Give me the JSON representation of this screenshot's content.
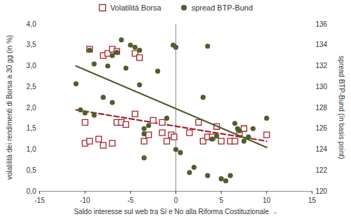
{
  "chart_data": {
    "type": "scatter",
    "xlabel": "Saldo interesse sul web tra Sì e No alla Riforma Costituzionale",
    "ylabel": "volatilità dei rendimenti di Borsa a 30 gg (in %)",
    "y2label": "spread BTP-Bund (in basis point)",
    "xlim": [
      -15,
      15
    ],
    "xticks": [
      -15,
      -10,
      -5,
      0,
      5,
      10,
      15
    ],
    "ylim": [
      0,
      4
    ],
    "yticks": [
      {
        "value": 0,
        "label": "0,0"
      },
      {
        "value": 0.5,
        "label": "0,5"
      },
      {
        "value": 1,
        "label": "1,0"
      },
      {
        "value": 1.5,
        "label": "1,5"
      },
      {
        "value": 2,
        "label": "2,0"
      },
      {
        "value": 2.5,
        "label": "2,5"
      },
      {
        "value": 3,
        "label": "3,0"
      },
      {
        "value": 3.5,
        "label": "3,5"
      },
      {
        "value": 4,
        "label": "4,0"
      }
    ],
    "y2lim": [
      120,
      136
    ],
    "y2ticks": [
      120,
      122,
      124,
      126,
      128,
      130,
      132,
      134,
      136
    ],
    "legend": "top",
    "series": [
      {
        "name": "Volatilità Borsa",
        "color": "#a3202c",
        "marker": "square-open",
        "x": [
          -10,
          -10,
          -9.5,
          -9.5,
          -8.5,
          -8,
          -8,
          -7.5,
          -7,
          -7,
          -6.5,
          -6.5,
          -6,
          -5.5,
          -4.5,
          -4.5,
          -4,
          -3.5,
          -3,
          -2.5,
          -1.5,
          -1.5,
          -1,
          -0.5,
          -0.2,
          1.5,
          2.5,
          3,
          3.5,
          4,
          4.5,
          5,
          6,
          6.5,
          7,
          7.5,
          10
        ],
        "values": [
          1.65,
          1.15,
          3.4,
          1.2,
          1.25,
          3.25,
          1.1,
          3.3,
          3.4,
          1.15,
          3.35,
          1.65,
          1.65,
          1.6,
          3.3,
          1.85,
          3.2,
          1.2,
          1.35,
          1.7,
          1.4,
          1.65,
          1.2,
          1.35,
          1.3,
          1.4,
          1.65,
          1.2,
          1.3,
          1.3,
          1.55,
          1.2,
          1.2,
          1.2,
          1.4,
          1.5,
          1.35
        ],
        "trend": {
          "x": [
            -11,
            10
          ],
          "values": [
            1.95,
            1.2
          ],
          "line_style": "dashed"
        }
      },
      {
        "name": "spread BTP-Bund",
        "color": "#4d5f2b",
        "marker": "circle",
        "axis": "y2",
        "x": [
          -11,
          -10.5,
          -10,
          -9.5,
          -9,
          -9,
          -8,
          -7.5,
          -7,
          -7,
          -6.5,
          -6,
          -5.5,
          -5,
          -4.5,
          -4,
          -4,
          -3.5,
          -3.5,
          -3.5,
          -3,
          -2,
          -1,
          -0.3,
          0,
          0,
          0.5,
          1.5,
          2,
          3,
          3.5,
          3.5,
          4,
          4.5,
          5,
          5.5,
          6,
          6.5,
          6.8,
          7,
          7.5,
          8,
          8.5,
          10
        ],
        "values": [
          130.3,
          127.8,
          127.5,
          133.5,
          132.2,
          127.3,
          129,
          132,
          133,
          128.5,
          133.3,
          134.5,
          131.8,
          134,
          133.8,
          133.5,
          130.2,
          126,
          125.5,
          123.2,
          126.3,
          131.5,
          127,
          134,
          133.8,
          124,
          123.7,
          121.8,
          122.3,
          129,
          133.9,
          121.5,
          125,
          125.3,
          121.2,
          121,
          121.5,
          126.5,
          126,
          125.8,
          124.8,
          125.2,
          126,
          127
        ],
        "trend": {
          "x": [
            -11,
            10
          ],
          "values": [
            132,
            124.2
          ],
          "line_style": "solid"
        }
      }
    ]
  }
}
